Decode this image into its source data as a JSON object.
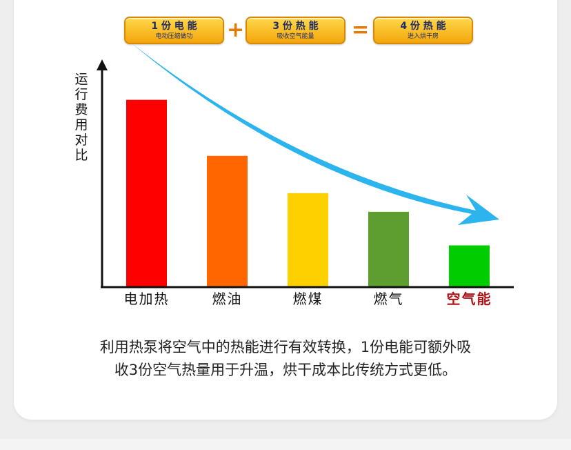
{
  "badges": [
    {
      "title": "1 份 电 能",
      "sub": "电动压缩做功"
    },
    {
      "title": "3 份 热 能",
      "sub": "吸收空气能量"
    },
    {
      "title": "4 份 热 能",
      "sub": "进入烘干房"
    }
  ],
  "operators": {
    "plus": "+",
    "equals": "="
  },
  "description": [
    "利用热泵将空气中的热能进行有效转换，1份电能可额外吸",
    "收3份空气热量用于升温，烘干成本比传统方式更低。"
  ],
  "colors": {
    "arrow": "#2bb4ee",
    "highlight_label": "#b01015"
  },
  "chart_data": {
    "type": "bar",
    "categories": [
      "电加热",
      "燃油",
      "燃煤",
      "燃气",
      "空气能"
    ],
    "values": [
      100,
      70,
      50,
      40,
      22
    ],
    "colors": [
      "#ff0000",
      "#ff6600",
      "#ffd000",
      "#5e9e30",
      "#00cc00"
    ],
    "highlight_index": 4,
    "ylabel": "运行费用对比",
    "xlabel": "",
    "title": "",
    "ylim": [
      0,
      118
    ],
    "grid": false,
    "legend": "none"
  }
}
